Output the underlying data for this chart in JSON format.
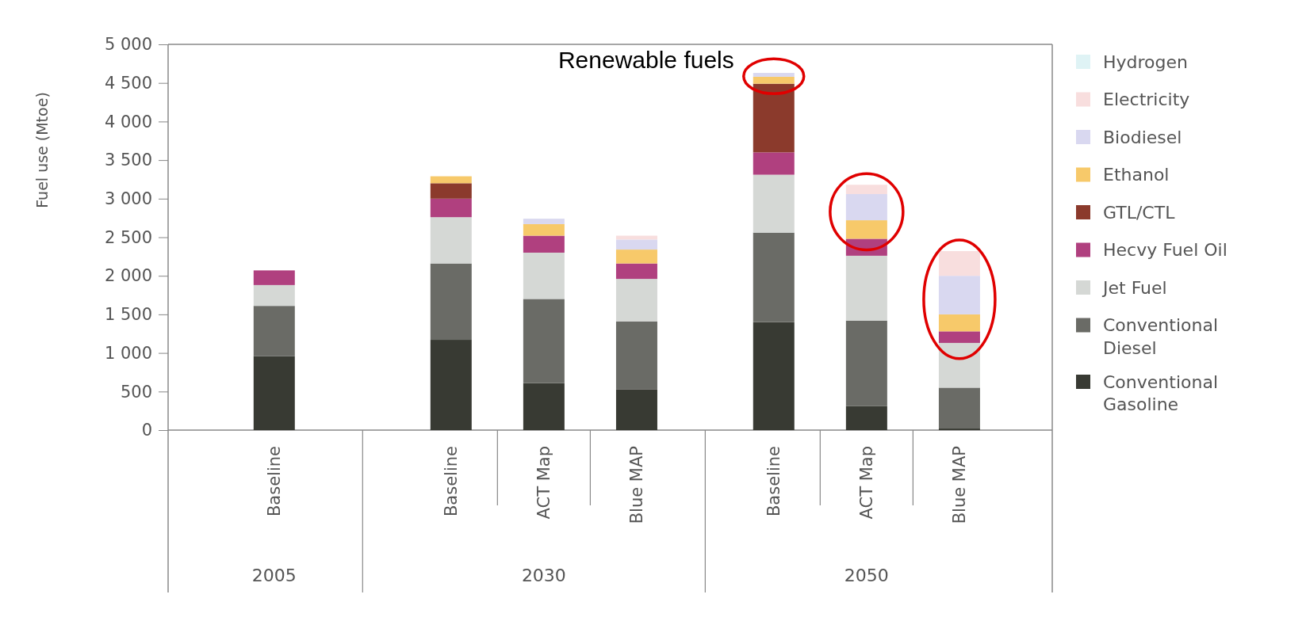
{
  "chart_data": {
    "type": "bar",
    "stacked": true,
    "ylabel": "Fuel use (Mtoe)",
    "categories": [
      "Baseline",
      "Baseline",
      "ACT Map",
      "Blue MAP",
      "Baseline",
      "ACT Map",
      "Blue MAP"
    ],
    "ylim": [
      0,
      5000
    ],
    "yticks": [
      0,
      500,
      {
        "value": 1000,
        "label": "1 000"
      },
      {
        "value": 1500,
        "label": "1 500"
      },
      {
        "value": 2000,
        "label": "2 000"
      },
      {
        "value": 2500,
        "label": "2 500"
      },
      {
        "value": 3000,
        "label": "3 000"
      },
      {
        "value": 3500,
        "label": "3 500"
      },
      {
        "value": 4000,
        "label": "4 000"
      },
      {
        "value": 4500,
        "label": "4 500"
      },
      {
        "value": 5000,
        "label": "5 000"
      }
    ],
    "series": [
      {
        "name": "Conventional Gasoline",
        "color": "#383a33",
        "values": [
          960,
          1170,
          610,
          530,
          1400,
          310,
          20
        ]
      },
      {
        "name": "Conventional Diesel",
        "color": "#6a6b66",
        "values": [
          650,
          990,
          1090,
          880,
          1160,
          1110,
          530
        ]
      },
      {
        "name": "Jet Fuel",
        "color": "#d5d8d5",
        "values": [
          270,
          600,
          600,
          550,
          750,
          840,
          580
        ]
      },
      {
        "name": "Hecvy Fuel Oil",
        "color": "#b0407f",
        "values": [
          190,
          240,
          220,
          200,
          290,
          220,
          150
        ]
      },
      {
        "name": "GTL/CTL",
        "color": "#8b3a2c",
        "values": [
          0,
          200,
          0,
          0,
          890,
          0,
          0
        ]
      },
      {
        "name": "Ethanol",
        "color": "#f7c96a",
        "values": [
          0,
          90,
          150,
          180,
          90,
          240,
          220
        ]
      },
      {
        "name": "Biodiesel",
        "color": "#d9d8f0",
        "values": [
          0,
          0,
          70,
          130,
          50,
          340,
          500
        ]
      },
      {
        "name": "Electricity",
        "color": "#f8dede",
        "values": [
          0,
          0,
          0,
          50,
          0,
          120,
          320
        ]
      },
      {
        "name": "Hydrogen",
        "color": "#dff3f5",
        "values": [
          0,
          0,
          0,
          0,
          0,
          0,
          0
        ]
      }
    ],
    "legend": "right",
    "annotations": [
      "Renewable fuels",
      "2005",
      "2030",
      "2050"
    ]
  }
}
